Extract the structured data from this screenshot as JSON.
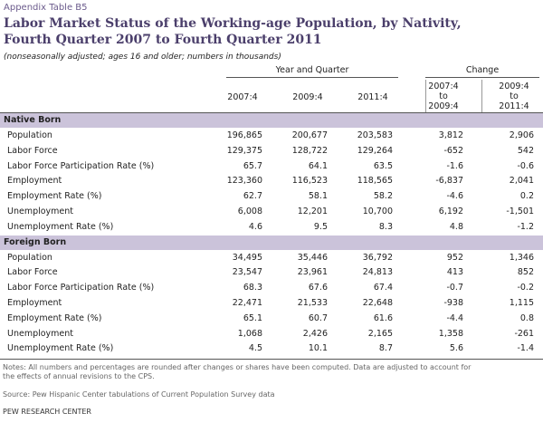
{
  "header": {
    "appendix": "Appendix Table B5",
    "title_lines": [
      "Labor Market Status of the Working-age Population, by Nativity,",
      "Fourth Quarter 2007 to Fourth Quarter 2011"
    ],
    "subtitle": "(nonseasonally adjusted; ages 16 and older; numbers in thousands)"
  },
  "table": {
    "group_headers": [
      "Year and Quarter",
      "Change"
    ],
    "columns": [
      [
        "2007:4"
      ],
      [
        "2009:4"
      ],
      [
        "2011:4"
      ],
      [
        "2007:4",
        "to",
        "2009:4"
      ],
      [
        "2009:4",
        "to",
        "2011:4"
      ]
    ],
    "sections": [
      {
        "name": "Native Born",
        "rows": [
          [
            "Population",
            "196,865",
            "200,677",
            "203,583",
            "3,812",
            "2,906"
          ],
          [
            "Labor Force",
            "129,375",
            "128,722",
            "129,264",
            "-652",
            "542"
          ],
          [
            "Labor Force Participation Rate (%)",
            "65.7",
            "64.1",
            "63.5",
            "-1.6",
            "-0.6"
          ],
          [
            "Employment",
            "123,360",
            "116,523",
            "118,565",
            "-6,837",
            "2,041"
          ],
          [
            "Employment Rate (%)",
            "62.7",
            "58.1",
            "58.2",
            "-4.6",
            "0.2"
          ],
          [
            "Unemployment",
            "6,008",
            "12,201",
            "10,700",
            "6,192",
            "-1,501"
          ],
          [
            "Unemployment Rate (%)",
            "4.6",
            "9.5",
            "8.3",
            "4.8",
            "-1.2"
          ]
        ]
      },
      {
        "name": "Foreign Born",
        "rows": [
          [
            "Population",
            "34,495",
            "35,446",
            "36,792",
            "952",
            "1,346"
          ],
          [
            "Labor Force",
            "23,547",
            "23,961",
            "24,813",
            "413",
            "852"
          ],
          [
            "Labor Force Participation Rate (%)",
            "68.3",
            "67.6",
            "67.4",
            "-0.7",
            "-0.2"
          ],
          [
            "Employment",
            "22,471",
            "21,533",
            "22,648",
            "-938",
            "1,115"
          ],
          [
            "Employment Rate (%)",
            "65.1",
            "60.7",
            "61.6",
            "-4.4",
            "0.8"
          ],
          [
            "Unemployment",
            "1,068",
            "2,426",
            "2,165",
            "1,358",
            "-261"
          ],
          [
            "Unemployment Rate (%)",
            "4.5",
            "10.1",
            "8.7",
            "5.6",
            "-1.4"
          ]
        ]
      }
    ]
  },
  "footer": {
    "notes": [
      "Notes: All numbers and percentages are rounded after changes or shares have been computed. Data are adjusted to account for",
      "the effects of annual revisions to the CPS."
    ],
    "source": "Source: Pew Hispanic Center tabulations of Current Population Survey data",
    "credit": "PEW RESEARCH CENTER"
  }
}
